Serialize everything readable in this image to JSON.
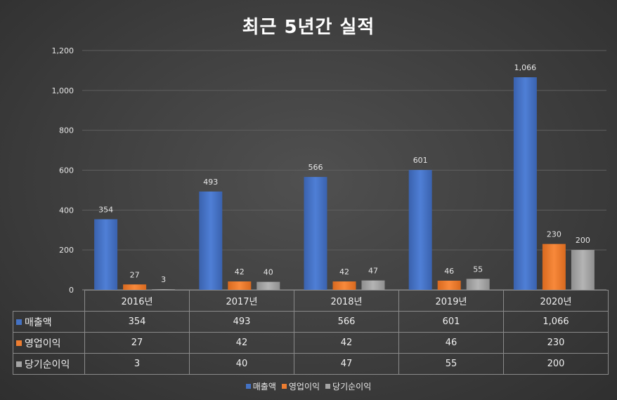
{
  "chart_data": {
    "type": "bar",
    "title": "최근 5년간 실적",
    "categories": [
      "2016년",
      "2017년",
      "2018년",
      "2019년",
      "2020년"
    ],
    "series": [
      {
        "name": "매출액",
        "values": [
          354,
          493,
          566,
          601,
          1066
        ],
        "labels": [
          "354",
          "493",
          "566",
          "601",
          "1,066"
        ],
        "color": "#4472c4"
      },
      {
        "name": "영업이익",
        "values": [
          27,
          42,
          42,
          46,
          230
        ],
        "labels": [
          "27",
          "42",
          "42",
          "46",
          "230"
        ],
        "color": "#ed7d31"
      },
      {
        "name": "당기순이익",
        "values": [
          3,
          40,
          47,
          55,
          200
        ],
        "labels": [
          "3",
          "40",
          "47",
          "55",
          "200"
        ],
        "color": "#a5a5a5"
      }
    ],
    "yticks": [
      "0",
      "200",
      "400",
      "600",
      "800",
      "1,000",
      "1,200"
    ],
    "ytick_values": [
      0,
      200,
      400,
      600,
      800,
      1000,
      1200
    ],
    "ylim": [
      0,
      1200
    ],
    "xlabel": "",
    "ylabel": "",
    "grid": true,
    "legend": "bottom",
    "data_table": true
  }
}
